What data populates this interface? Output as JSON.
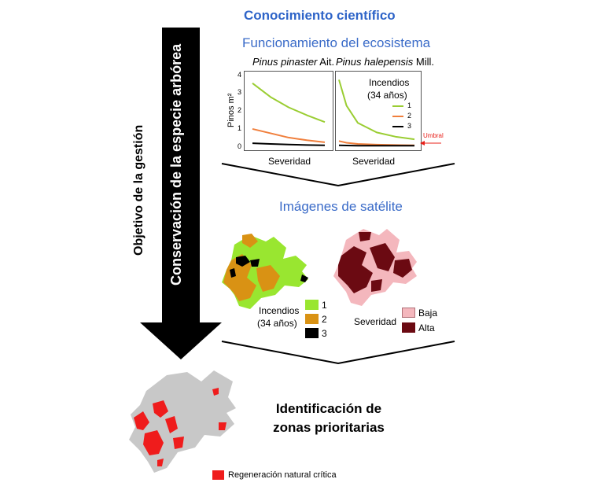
{
  "header": {
    "title": "Conocimiento científico",
    "subtitle": "Funcionamiento del ecosistema"
  },
  "species": {
    "left_italic": "Pinus pinaster",
    "left_author": " Ait.",
    "right_italic": "Pinus halepensis",
    "right_author": " Mill."
  },
  "arrow": {
    "outer_label": "Objetivo de la gestión",
    "inner_label": "Conservación de la especie arbórea",
    "color": "#000000"
  },
  "chart_data": [
    {
      "type": "line",
      "panel": "Pinus pinaster Ait.",
      "xlabel": "Severidad",
      "ylabel": "Pinos m²",
      "yticks": [
        "0",
        "1",
        "2",
        "3",
        "4"
      ],
      "ylim": [
        0,
        4.1
      ],
      "x": [
        0,
        0.25,
        0.5,
        0.75,
        1
      ],
      "series": [
        {
          "name": "1",
          "color": "#9acd32",
          "values": [
            3.7,
            2.9,
            2.3,
            1.85,
            1.45
          ]
        },
        {
          "name": "2",
          "color": "#f07f3c",
          "values": [
            1.05,
            0.8,
            0.55,
            0.4,
            0.28
          ]
        },
        {
          "name": "3",
          "color": "#000000",
          "values": [
            0.22,
            0.18,
            0.15,
            0.12,
            0.1
          ]
        }
      ]
    },
    {
      "type": "line",
      "panel": "Pinus halepensis Mill.",
      "xlabel": "Severidad",
      "ylim": [
        0,
        4.1
      ],
      "x": [
        0,
        0.1,
        0.25,
        0.5,
        0.75,
        1
      ],
      "series": [
        {
          "name": "1",
          "color": "#9acd32",
          "values": [
            3.9,
            2.4,
            1.4,
            0.85,
            0.6,
            0.45
          ]
        },
        {
          "name": "2",
          "color": "#f07f3c",
          "values": [
            0.35,
            0.25,
            0.18,
            0.14,
            0.12,
            0.1
          ]
        },
        {
          "name": "3",
          "color": "#000000",
          "values": [
            0.1,
            0.09,
            0.08,
            0.08,
            0.08,
            0.08
          ]
        }
      ],
      "legend_title": "Incendios\n(34 años)",
      "legend_title_line1": "Incendios",
      "legend_title_line2": "(34 años)",
      "threshold_label": "Umbral",
      "threshold_color": "#e8201a"
    }
  ],
  "satellite": {
    "title": "Imágenes de satélite",
    "fires_legend_line1": "Incendios",
    "fires_legend_line2": "(34 años)",
    "fires_items": [
      {
        "label": "1",
        "color": "#99e630"
      },
      {
        "label": "2",
        "color": "#d99214"
      },
      {
        "label": "3",
        "color": "#000000"
      }
    ],
    "severity_legend_title": "Severidad",
    "severity_items": [
      {
        "label": "Baja",
        "color": "#f4b7bd"
      },
      {
        "label": "Alta",
        "color": "#6b0a12"
      }
    ]
  },
  "result": {
    "line1": "Identificación de",
    "line2": "zonas prioritarias",
    "legend_label": "Regeneración natural crítica",
    "legend_color": "#ef1c1c",
    "map_color": "#c8c8c8"
  }
}
